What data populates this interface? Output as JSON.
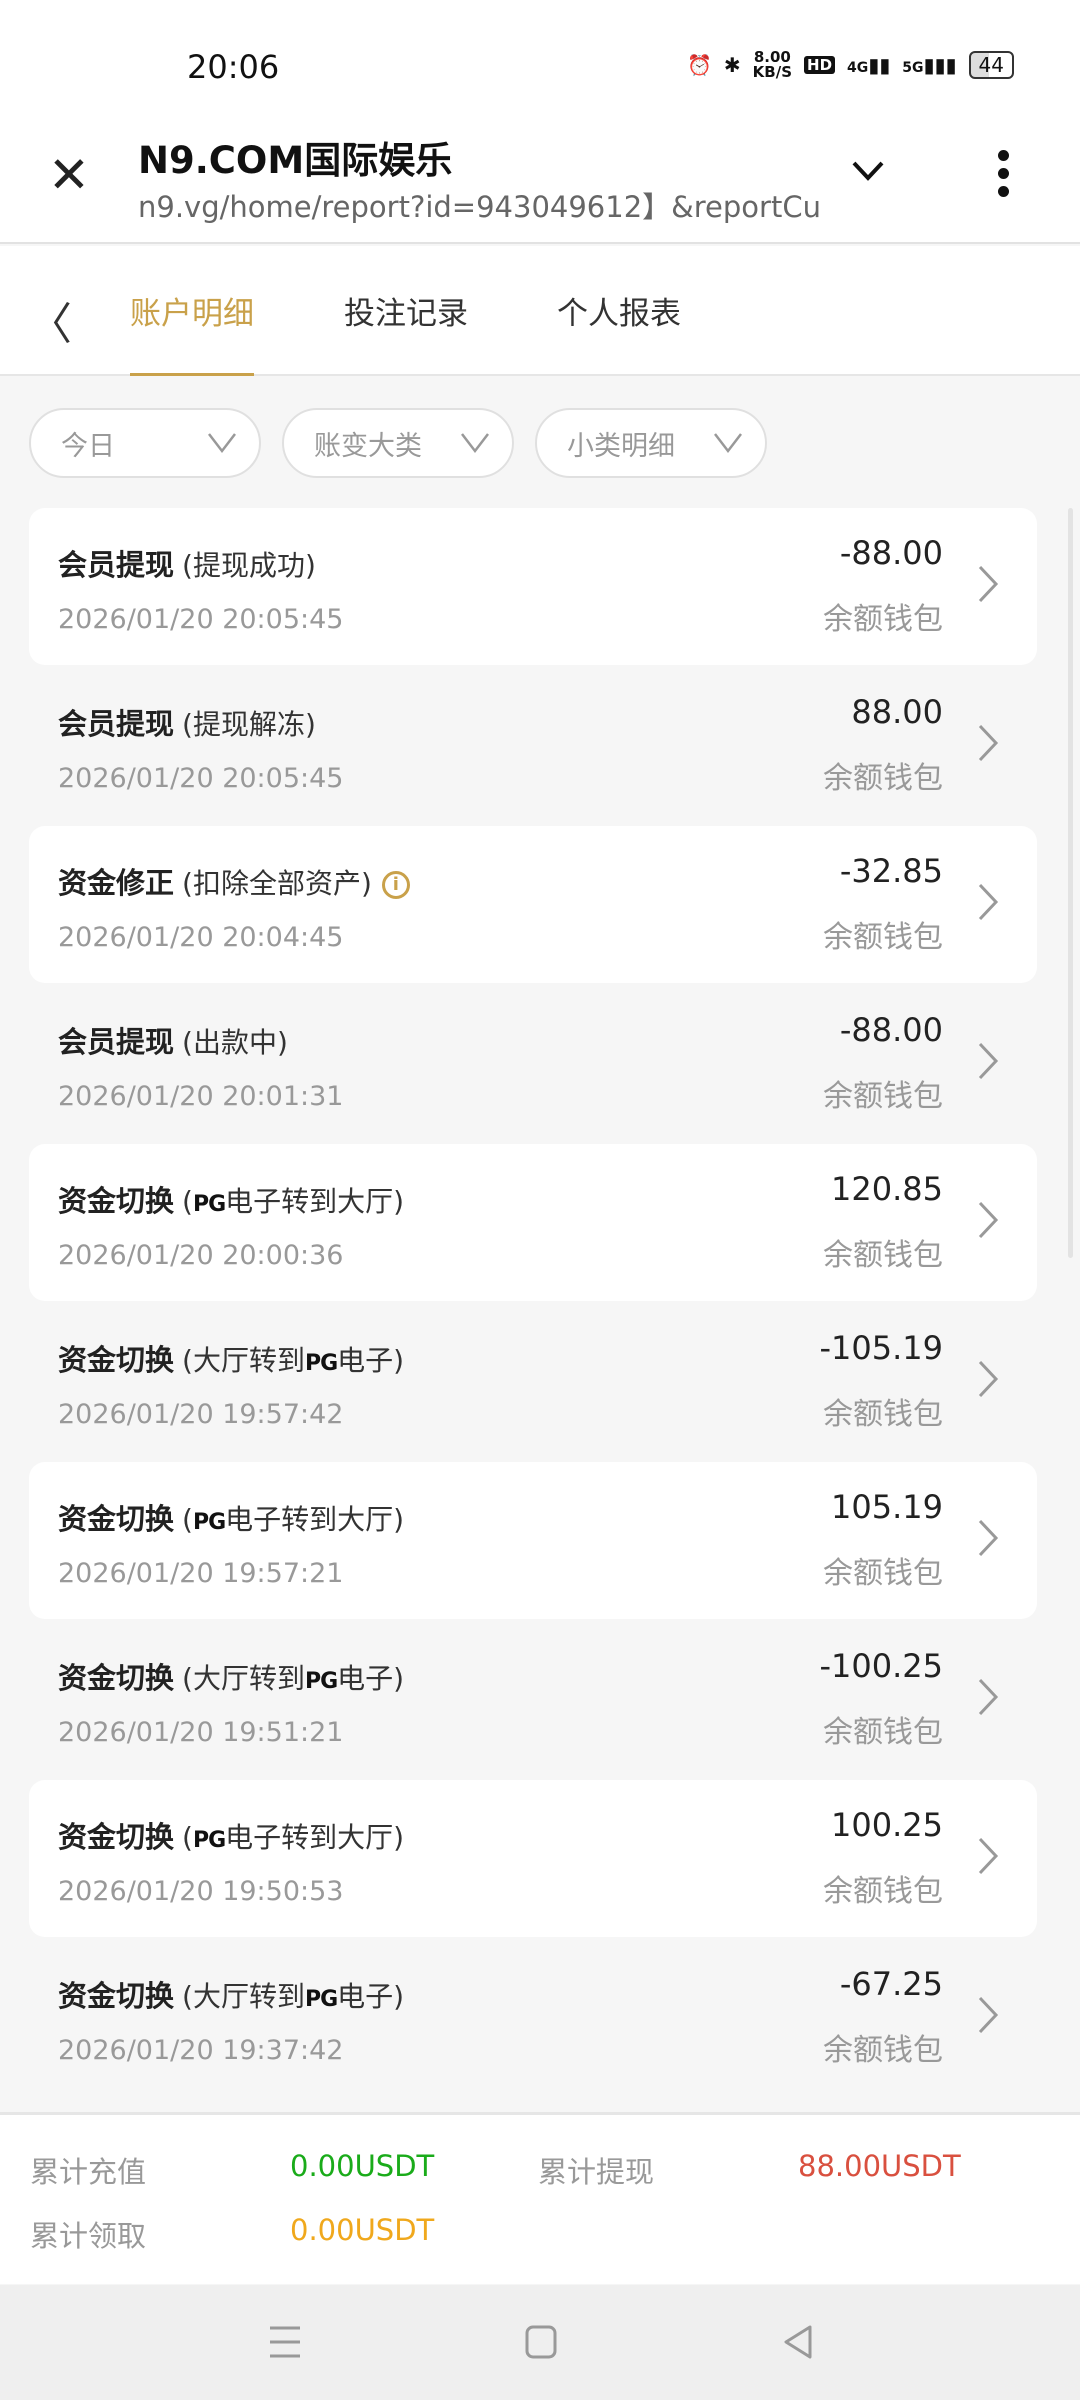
{
  "status_bar": {
    "time": "20:06",
    "net_speed": "8.00",
    "net_unit": "KB/S",
    "hd": "HD",
    "sig1": "4G",
    "sig2": "5G",
    "battery": "44"
  },
  "browser": {
    "title": "N9.COM国际娱乐",
    "url": "n9.vg/home/report?id=943049612】&reportCu"
  },
  "tabs": [
    {
      "label": "账户明细",
      "active": true
    },
    {
      "label": "投注记录",
      "active": false
    },
    {
      "label": "个人报表",
      "active": false
    }
  ],
  "filters": [
    {
      "label": "今日"
    },
    {
      "label": "账变大类"
    },
    {
      "label": "小类明细"
    }
  ],
  "rows": [
    {
      "name": "会员提现",
      "sub_pre": "(提现成功)",
      "logo": "",
      "sub_post": "",
      "info": false,
      "date": "2026/01/20 20:05:45",
      "amount": "-88.00",
      "wallet": "余额钱包"
    },
    {
      "name": "会员提现",
      "sub_pre": "(提现解冻)",
      "logo": "",
      "sub_post": "",
      "info": false,
      "date": "2026/01/20 20:05:45",
      "amount": "88.00",
      "wallet": "余额钱包"
    },
    {
      "name": "资金修正",
      "sub_pre": "(扣除全部资产)",
      "logo": "",
      "sub_post": "",
      "info": true,
      "date": "2026/01/20 20:04:45",
      "amount": "-32.85",
      "wallet": "余额钱包"
    },
    {
      "name": "会员提现",
      "sub_pre": "(出款中)",
      "logo": "",
      "sub_post": "",
      "info": false,
      "date": "2026/01/20 20:01:31",
      "amount": "-88.00",
      "wallet": "余额钱包"
    },
    {
      "name": "资金切换",
      "sub_pre": "(",
      "logo": "PG",
      "sub_post": "电子转到大厅)",
      "info": false,
      "date": "2026/01/20 20:00:36",
      "amount": "120.85",
      "wallet": "余额钱包"
    },
    {
      "name": "资金切换",
      "sub_pre": "(大厅转到",
      "logo": "PG",
      "sub_post": "电子)",
      "info": false,
      "date": "2026/01/20 19:57:42",
      "amount": "-105.19",
      "wallet": "余额钱包"
    },
    {
      "name": "资金切换",
      "sub_pre": "(",
      "logo": "PG",
      "sub_post": "电子转到大厅)",
      "info": false,
      "date": "2026/01/20 19:57:21",
      "amount": "105.19",
      "wallet": "余额钱包"
    },
    {
      "name": "资金切换",
      "sub_pre": "(大厅转到",
      "logo": "PG",
      "sub_post": "电子)",
      "info": false,
      "date": "2026/01/20 19:51:21",
      "amount": "-100.25",
      "wallet": "余额钱包"
    },
    {
      "name": "资金切换",
      "sub_pre": "(",
      "logo": "PG",
      "sub_post": "电子转到大厅)",
      "info": false,
      "date": "2026/01/20 19:50:53",
      "amount": "100.25",
      "wallet": "余额钱包"
    },
    {
      "name": "资金切换",
      "sub_pre": "(大厅转到",
      "logo": "PG",
      "sub_post": "电子)",
      "info": false,
      "date": "2026/01/20 19:37:42",
      "amount": "-67.25",
      "wallet": "余额钱包"
    }
  ],
  "summary": {
    "deposit_label": "累计充值",
    "deposit_value": "0.00USDT",
    "withdraw_label": "累计提现",
    "withdraw_value": "88.00USDT",
    "claim_label": "累计领取",
    "claim_value": "0.00USDT"
  },
  "colors": {
    "accent": "#c9a14a",
    "deposit": "#1aab1a",
    "withdraw": "#d9503f",
    "claim": "#f0a81c"
  }
}
